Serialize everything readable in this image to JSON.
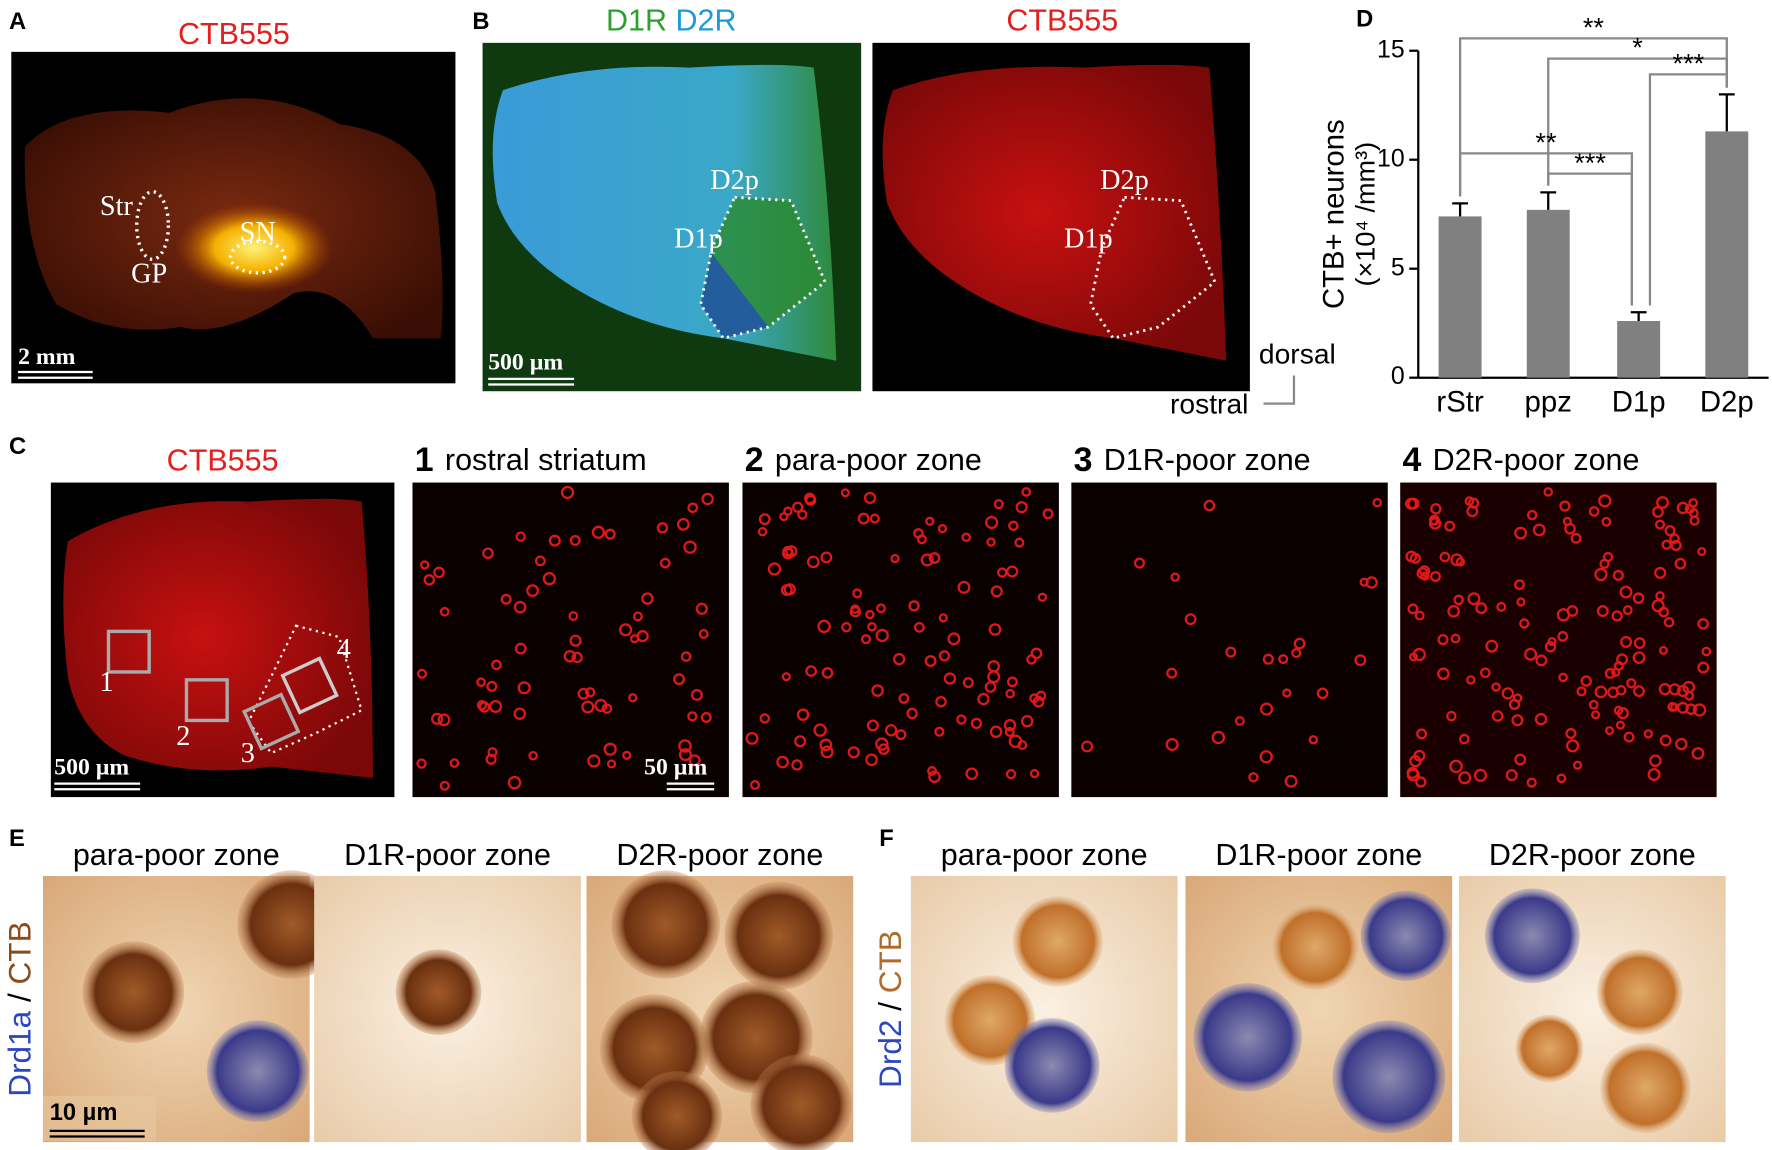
{
  "panels": {
    "A": {
      "letter": "A",
      "title": "CTB555",
      "labels": [
        "Str",
        "GP",
        "SN"
      ],
      "scale_bar": "2 mm"
    },
    "B": {
      "letter": "B",
      "left_title": [
        "D1R",
        "D2R"
      ],
      "right_title": "CTB555",
      "left_labels": [
        "D2p",
        "D1p"
      ],
      "right_labels": [
        "D2p",
        "D1p"
      ],
      "scale_bar": "500 µm",
      "axes": [
        "dorsal",
        "rostral"
      ]
    },
    "C": {
      "letter": "C",
      "title": "CTB555",
      "boxes": [
        "1",
        "2",
        "3",
        "4"
      ],
      "scale_bar": "500 µm",
      "insets": [
        {
          "number": "1",
          "title": "rostral striatum"
        },
        {
          "number": "2",
          "title": "para-poor zone"
        },
        {
          "number": "3",
          "title": "D1R-poor zone"
        },
        {
          "number": "4",
          "title": "D2R-poor zone"
        }
      ],
      "inset_scale_bar": "50 µm"
    },
    "E": {
      "letter": "E",
      "titles": [
        "para-poor zone",
        "D1R-poor zone",
        "D2R-poor zone"
      ],
      "side_label": [
        "Drd1a",
        "/",
        "CTB"
      ],
      "scale_bar": "10 µm"
    },
    "F": {
      "letter": "F",
      "titles": [
        "para-poor zone",
        "D1R-poor zone",
        "D2R-poor zone"
      ],
      "side_label": [
        "Drd2",
        "/",
        "CTB"
      ]
    }
  },
  "chart_data": {
    "type": "bar",
    "letter": "D",
    "y_label": [
      "CTB+ neurons",
      "(×10⁴ /mm³)"
    ],
    "categories": [
      "rStr",
      "ppz",
      "D1p",
      "D2p"
    ],
    "values": [
      7.4,
      7.7,
      2.6,
      11.3
    ],
    "errors": [
      0.6,
      0.8,
      0.4,
      1.7
    ],
    "color": "#808080",
    "ylim": [
      0,
      15
    ],
    "yticks": [
      0,
      5,
      10,
      15
    ],
    "significance": [
      "**",
      "*",
      "***",
      "**",
      "***"
    ]
  }
}
